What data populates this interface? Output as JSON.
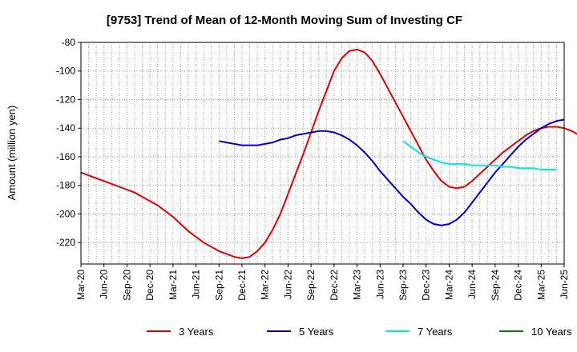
{
  "chart_data": {
    "type": "line",
    "title": "[9753]  Trend of Mean of 12-Month Moving Sum of Investing CF",
    "xlabel": "",
    "ylabel": "Amount (million yen)",
    "ylim": [
      -235,
      -80
    ],
    "yticks": [
      -80,
      -100,
      -120,
      -140,
      -160,
      -180,
      -200,
      -220
    ],
    "x_tick_labels": [
      "Mar-20",
      "Jun-20",
      "Sep-20",
      "Dec-20",
      "Mar-21",
      "Jun-21",
      "Sep-21",
      "Dec-21",
      "Mar-22",
      "Jun-22",
      "Sep-22",
      "Dec-22",
      "Mar-23",
      "Jun-23",
      "Sep-23",
      "Dec-23",
      "Mar-24",
      "Jun-24",
      "Sep-24",
      "Dec-24",
      "Mar-25",
      "Jun-25"
    ],
    "x_start_month": "Mar-20",
    "grid": true,
    "legend_position": "bottom",
    "series": [
      {
        "name": "3 Years",
        "color": "#e00000",
        "start_index": 0,
        "values": [
          -171,
          -173,
          -175,
          -177,
          -179,
          -181,
          -183,
          -185,
          -188,
          -191,
          -194,
          -198,
          -202,
          -207,
          -212,
          -216,
          -220,
          -223,
          -226,
          -228,
          -230,
          -231,
          -230,
          -226,
          -220,
          -211,
          -200,
          -186,
          -172,
          -158,
          -143,
          -128,
          -114,
          -100,
          -91,
          -86,
          -85,
          -87,
          -93,
          -102,
          -112,
          -122,
          -132,
          -142,
          -152,
          -162,
          -170,
          -177,
          -181,
          -182,
          -181,
          -177,
          -172,
          -167,
          -162,
          -157,
          -153,
          -149,
          -145,
          -142,
          -140,
          -139,
          -139,
          -140,
          -142,
          -145
        ]
      },
      {
        "name": "5 Years",
        "color": "#0000cc",
        "start_index": 18,
        "values": [
          -149,
          -150,
          -151,
          -152,
          -152,
          -152,
          -151,
          -150,
          -148,
          -147,
          -145,
          -144,
          -143,
          -142,
          -142,
          -143,
          -145,
          -148,
          -152,
          -157,
          -163,
          -170,
          -176,
          -182,
          -188,
          -193,
          -199,
          -204,
          -207,
          -208,
          -207,
          -204,
          -199,
          -192,
          -185,
          -178,
          -171,
          -165,
          -159,
          -153,
          -148,
          -144,
          -140,
          -137,
          -135,
          -134
        ]
      },
      {
        "name": "7 Years",
        "color": "#00e5ee",
        "start_index": 42,
        "values": [
          -149,
          -153,
          -157,
          -160,
          -162,
          -164,
          -165,
          -165,
          -165,
          -166,
          -166,
          -166,
          -166,
          -167,
          -167,
          -168,
          -168,
          -168,
          -169,
          -169,
          -169
        ]
      },
      {
        "name": "10 Years",
        "color": "#008000",
        "start_index": 0,
        "values": []
      }
    ]
  }
}
